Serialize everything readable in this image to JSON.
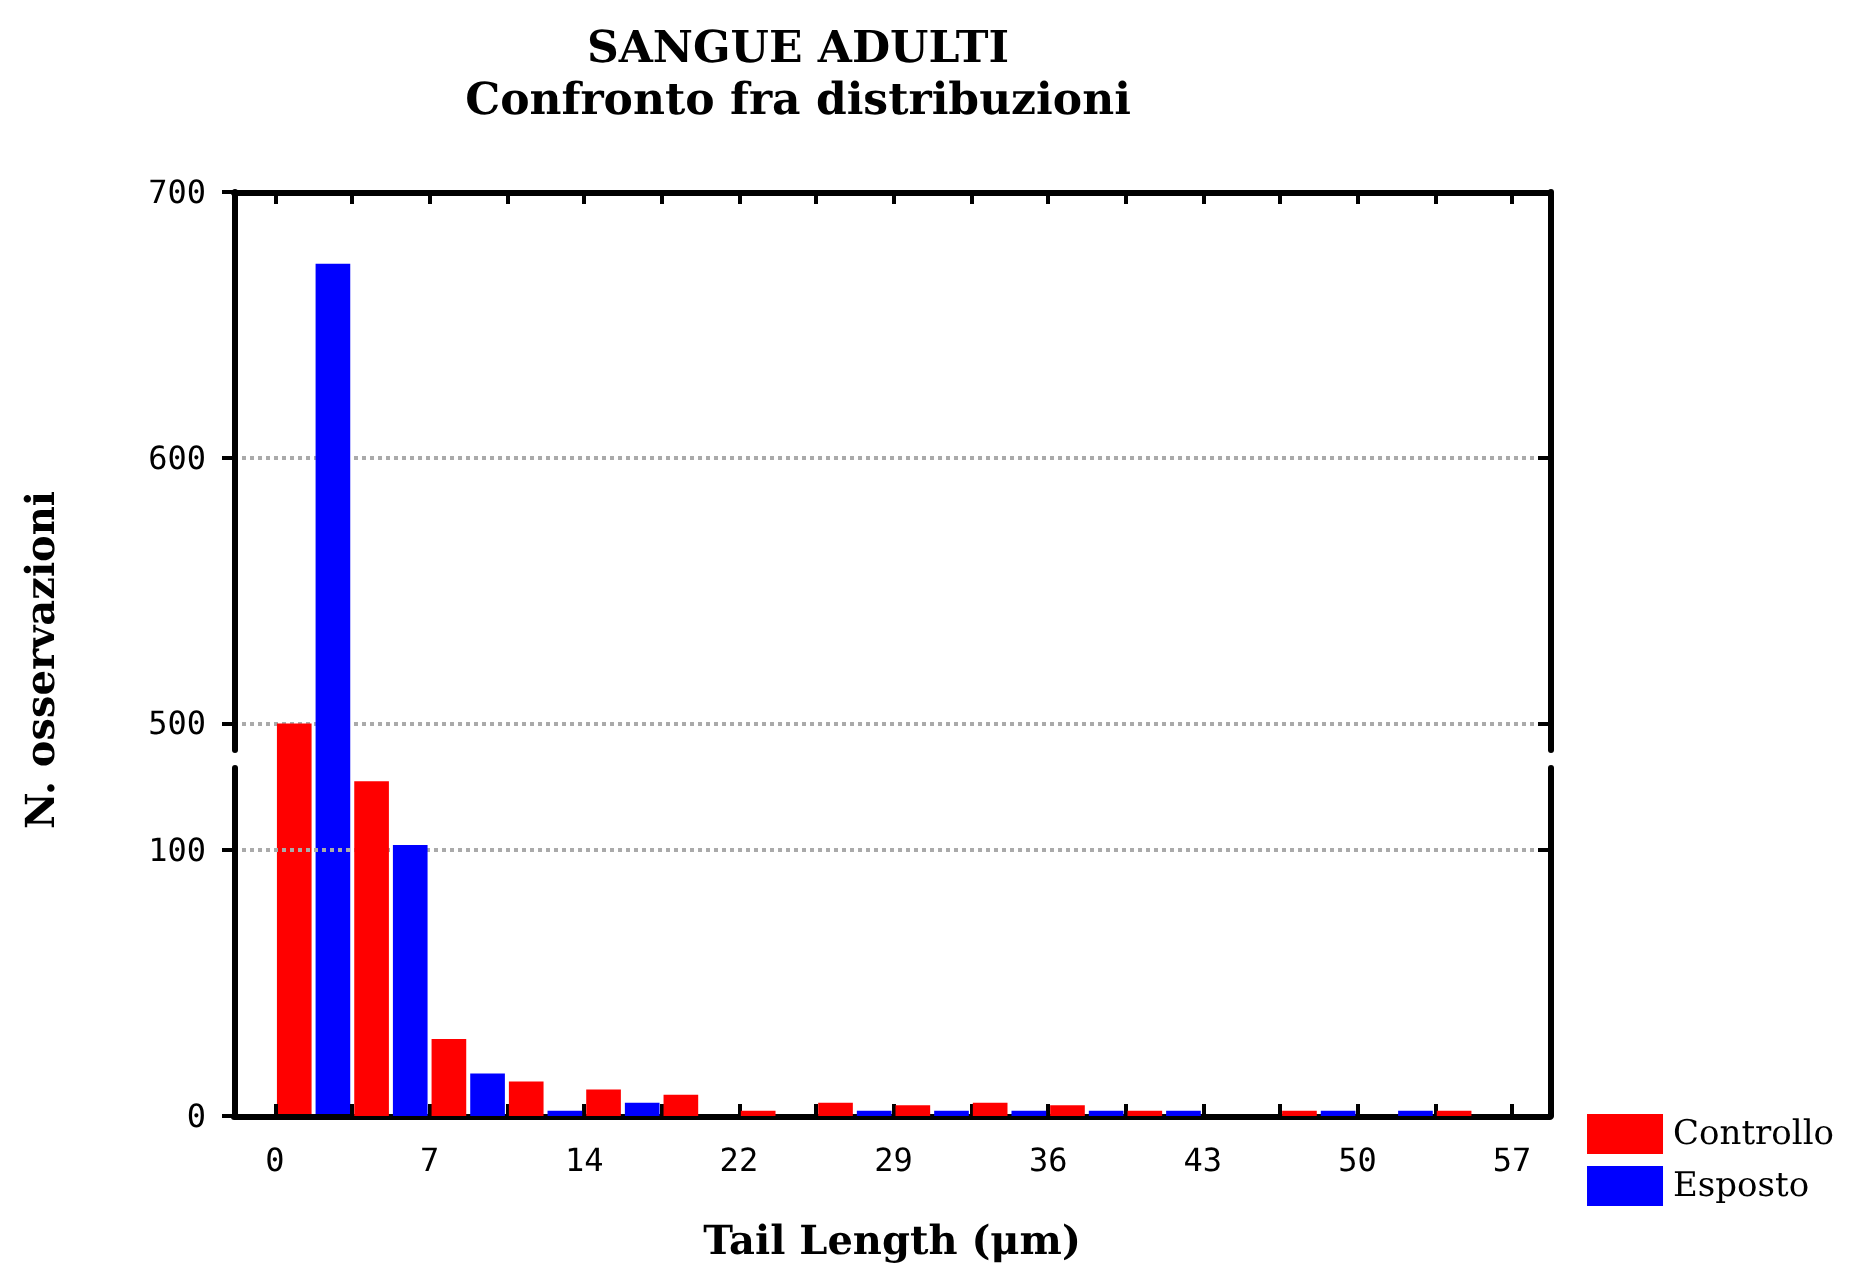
{
  "chart_data": [
    {
      "type": "histogram",
      "title": "SANGUE ADULTI",
      "subtitle": "Confronto fra distribuzioni",
      "ylabel": "N. osservazioni",
      "bins": [
        0,
        3.59,
        7.18,
        10.77,
        14.36,
        17.95,
        21.54,
        25.13,
        28.72,
        32.31,
        35.9,
        39.49,
        43.08,
        46.67,
        50.26,
        53.85,
        57.44
      ],
      "series": [
        {
          "color": "#ff0000",
          "values": [
            500,
            null,
            null,
            null,
            null,
            null,
            null,
            null,
            null,
            null,
            null,
            null,
            null,
            null,
            null,
            null
          ]
        },
        {
          "color": "#0000ff",
          "values": [
            673,
            null,
            null,
            null,
            null,
            null,
            null,
            null,
            null,
            null,
            null,
            null,
            null,
            null,
            null,
            null
          ]
        }
      ],
      "xlim": [
        -1.9,
        59.2
      ],
      "xticks": [
        {
          "value": 0,
          "label": null
        },
        {
          "value": 3.59,
          "label": null
        },
        {
          "value": 7.18,
          "label": null
        },
        {
          "value": 10.77,
          "label": null
        },
        {
          "value": 14.36,
          "label": null
        },
        {
          "value": 17.95,
          "label": null
        },
        {
          "value": 21.54,
          "label": null
        },
        {
          "value": 25.13,
          "label": null
        },
        {
          "value": 28.72,
          "label": null
        },
        {
          "value": 32.31,
          "label": null
        },
        {
          "value": 35.9,
          "label": null
        },
        {
          "value": 39.49,
          "label": null
        },
        {
          "value": 43.08,
          "label": null
        },
        {
          "value": 46.67,
          "label": null
        },
        {
          "value": 50.26,
          "label": null
        },
        {
          "value": 53.85,
          "label": null
        },
        {
          "value": 57.44,
          "label": null
        }
      ],
      "ylim": [
        490,
        700
      ],
      "yticks": [
        500,
        600,
        700
      ],
      "grid": "y",
      "tick_labels": "y"
    },
    {
      "type": "histogram",
      "xlabel": "Tail Length (μm)",
      "bins": [
        0,
        3.59,
        7.18,
        10.77,
        14.36,
        17.95,
        21.54,
        25.13,
        28.72,
        32.31,
        35.9,
        39.49,
        43.08,
        46.67,
        50.26,
        53.85,
        57.44
      ],
      "series": [
        {
          "name": "Controllo",
          "color": "#ff0000",
          "values": [
            null,
            126,
            29,
            13,
            10,
            8,
            2,
            5,
            4,
            5,
            4,
            2,
            0,
            2,
            0,
            2
          ]
        },
        {
          "name": "Esposto",
          "color": "#0000ff",
          "values": [
            null,
            102,
            16,
            2,
            5,
            0,
            0,
            2,
            2,
            2,
            2,
            2,
            0,
            2,
            2,
            0
          ]
        }
      ],
      "xlim": [
        -1.9,
        59.2
      ],
      "xticks": [
        {
          "value": 0,
          "label": "0"
        },
        {
          "value": 3.59,
          "label": null
        },
        {
          "value": 7.18,
          "label": "7"
        },
        {
          "value": 10.77,
          "label": null
        },
        {
          "value": 14.36,
          "label": "14"
        },
        {
          "value": 17.95,
          "label": null
        },
        {
          "value": 21.54,
          "label": "22"
        },
        {
          "value": 25.13,
          "label": null
        },
        {
          "value": 28.72,
          "label": "29"
        },
        {
          "value": 32.31,
          "label": null
        },
        {
          "value": 35.9,
          "label": "36"
        },
        {
          "value": 39.49,
          "label": null
        },
        {
          "value": 43.08,
          "label": "43"
        },
        {
          "value": 46.67,
          "label": null
        },
        {
          "value": 50.26,
          "label": "50"
        },
        {
          "value": 53.85,
          "label": null
        },
        {
          "value": 57.44,
          "label": "57"
        }
      ],
      "ylim": [
        0,
        131
      ],
      "yticks": [
        0,
        100
      ],
      "grid": "y",
      "legend": "bottom right"
    }
  ]
}
